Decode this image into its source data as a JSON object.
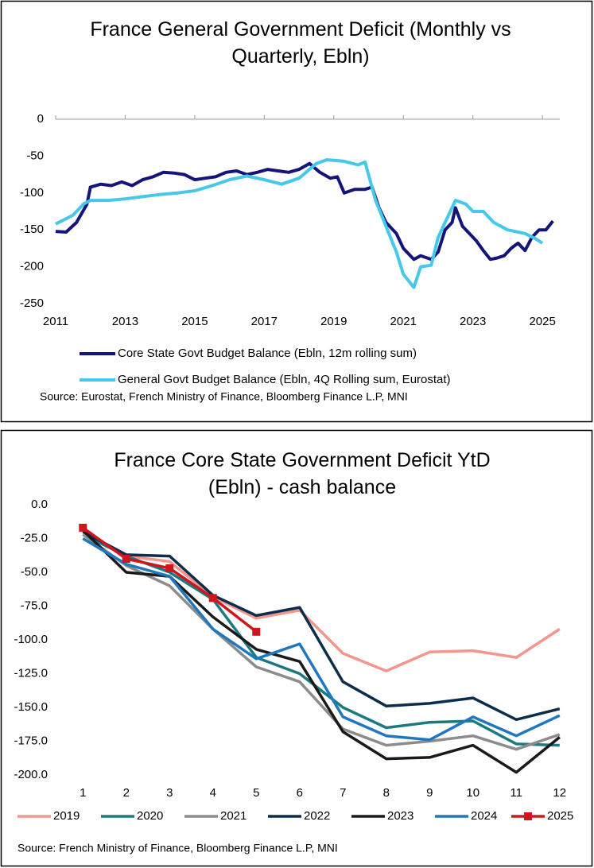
{
  "chart_data": [
    {
      "type": "line",
      "title": "France General Government Deficit (Monthly vs Quarterly, Ebln)",
      "source": "Source: Eurostat, French Ministry of Finance, Bloomberg Finance L.P, MNI",
      "xlim": [
        2011,
        2025.5
      ],
      "xticks": [
        2011,
        2013,
        2015,
        2017,
        2019,
        2021,
        2023,
        2025
      ],
      "ylim": [
        -250,
        0
      ],
      "yticks": [
        -250,
        -200,
        -150,
        -100,
        -50,
        0
      ],
      "series": [
        {
          "name": "Core State Govt Budget Balance (Ebln, 12m rolling sum)",
          "color": "#14147a",
          "x": [
            2011.0,
            2011.3,
            2011.6,
            2011.9,
            2012.0,
            2012.3,
            2012.6,
            2012.9,
            2013.2,
            2013.5,
            2013.8,
            2014.1,
            2014.4,
            2014.7,
            2015.0,
            2015.3,
            2015.6,
            2015.9,
            2016.2,
            2016.5,
            2016.8,
            2017.1,
            2017.4,
            2017.7,
            2018.0,
            2018.3,
            2018.6,
            2018.9,
            2019.1,
            2019.3,
            2019.6,
            2019.9,
            2020.1,
            2020.3,
            2020.5,
            2020.8,
            2021.0,
            2021.3,
            2021.5,
            2021.8,
            2022.0,
            2022.2,
            2022.4,
            2022.5,
            2022.7,
            2022.9,
            2023.1,
            2023.3,
            2023.5,
            2023.7,
            2023.9,
            2024.1,
            2024.3,
            2024.5,
            2024.7,
            2024.9,
            2025.1,
            2025.3
          ],
          "values": [
            -152,
            -153,
            -140,
            -115,
            -92,
            -88,
            -90,
            -85,
            -90,
            -82,
            -78,
            -72,
            -73,
            -75,
            -82,
            -80,
            -78,
            -72,
            -70,
            -75,
            -72,
            -68,
            -70,
            -72,
            -68,
            -60,
            -72,
            -80,
            -78,
            -100,
            -95,
            -95,
            -92,
            -120,
            -140,
            -155,
            -175,
            -190,
            -185,
            -190,
            -180,
            -150,
            -140,
            -120,
            -145,
            -155,
            -165,
            -178,
            -190,
            -188,
            -185,
            -175,
            -168,
            -178,
            -160,
            -150,
            -150,
            -138
          ]
        },
        {
          "name": "General Govt Budget Balance (Ebln, 4Q Rolling sum, Eurostat)",
          "color": "#45c8ea",
          "x": [
            2011.0,
            2011.5,
            2011.8,
            2012.0,
            2012.5,
            2013.0,
            2013.5,
            2014.0,
            2014.5,
            2015.0,
            2015.5,
            2016.0,
            2016.5,
            2017.0,
            2017.5,
            2018.0,
            2018.5,
            2018.8,
            2019.3,
            2019.7,
            2019.9,
            2020.2,
            2020.5,
            2020.8,
            2021.0,
            2021.3,
            2021.5,
            2021.8,
            2022.0,
            2022.3,
            2022.5,
            2022.8,
            2023.0,
            2023.3,
            2023.6,
            2024.0,
            2024.5,
            2024.8,
            2025.0
          ],
          "values": [
            -142,
            -130,
            -115,
            -110,
            -110,
            -108,
            -105,
            -102,
            -100,
            -97,
            -90,
            -82,
            -77,
            -82,
            -88,
            -80,
            -60,
            -55,
            -57,
            -62,
            -58,
            -110,
            -145,
            -180,
            -210,
            -228,
            -200,
            -198,
            -160,
            -130,
            -110,
            -115,
            -125,
            -125,
            -140,
            -150,
            -155,
            -162,
            -168
          ]
        }
      ]
    },
    {
      "type": "line",
      "title": "France Core State Government Deficit YtD (Ebln) - cash balance",
      "source": "Source: French Ministry of Finance, Bloomberg Finance L.P, MNI",
      "x": [
        1,
        2,
        3,
        4,
        5,
        6,
        7,
        8,
        9,
        10,
        11,
        12
      ],
      "xlim": [
        0.5,
        12.5
      ],
      "xticks": [
        1,
        2,
        3,
        4,
        5,
        6,
        7,
        8,
        9,
        10,
        11,
        12
      ],
      "ylim": [
        -200,
        0
      ],
      "yticks": [
        {
          "value": 0,
          "label": "0.0"
        },
        {
          "value": -25,
          "label": "-25.0"
        },
        {
          "value": -50,
          "label": "-50.0"
        },
        {
          "value": -75,
          "label": "-75.0"
        },
        {
          "value": -100,
          "label": "-100.0"
        },
        {
          "value": -125,
          "label": "-125.0"
        },
        {
          "value": -150,
          "label": "-150.0"
        },
        {
          "value": -175,
          "label": "-175.0"
        },
        {
          "value": -200,
          "label": "-200.0"
        }
      ],
      "series": [
        {
          "name": "2019",
          "color": "#f4958e",
          "values": [
            -20,
            -38,
            -42,
            -68,
            -84,
            -78,
            -110,
            -123,
            -109,
            -108,
            -113,
            -92
          ]
        },
        {
          "name": "2020",
          "color": "#1a7a80",
          "values": [
            -22,
            -38,
            -50,
            -70,
            -113,
            -125,
            -150,
            -165,
            -161,
            -160,
            -177,
            -178
          ]
        },
        {
          "name": "2021",
          "color": "#8c8c8c",
          "values": [
            -22,
            -45,
            -60,
            -92,
            -120,
            -131,
            -166,
            -178,
            -175,
            -171,
            -181,
            -170
          ]
        },
        {
          "name": "2022",
          "color": "#0d2d4d",
          "values": [
            -20,
            -37,
            -38,
            -67,
            -82,
            -76,
            -131,
            -149,
            -147,
            -143,
            -159,
            -151
          ]
        },
        {
          "name": "2023",
          "color": "#1a1a1a",
          "values": [
            -19,
            -50,
            -53,
            -83,
            -107,
            -116,
            -168,
            -188,
            -187,
            -178,
            -198,
            -172
          ]
        },
        {
          "name": "2024",
          "color": "#1f77c0",
          "values": [
            -25,
            -44,
            -53,
            -92,
            -114,
            -103,
            -157,
            -171,
            -174,
            -157,
            -171,
            -156
          ]
        },
        {
          "name": "2025",
          "color": "#d0161c",
          "marker": "square",
          "values": [
            -17,
            -40,
            -47,
            -69,
            -94,
            null,
            null,
            null,
            null,
            null,
            null,
            null
          ]
        }
      ]
    }
  ]
}
